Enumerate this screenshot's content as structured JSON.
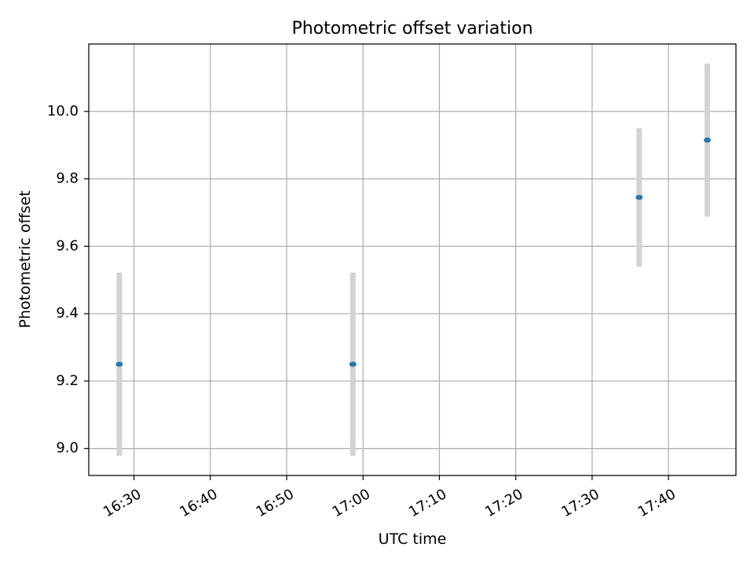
{
  "chart_data": {
    "type": "scatter",
    "title": "Photometric offset variation",
    "xlabel": "UTC time",
    "ylabel": "Photometric offset",
    "grid": true,
    "x_ticks": [
      "16:30",
      "16:40",
      "16:50",
      "17:00",
      "17:10",
      "17:20",
      "17:30",
      "17:40"
    ],
    "y_ticks": [
      "9.0",
      "9.2",
      "9.4",
      "9.6",
      "9.8",
      "10.0"
    ],
    "xlim": [
      "16:24:05",
      "17:48:50"
    ],
    "ylim": [
      8.92,
      10.2
    ],
    "series": [
      {
        "points": [
          {
            "x": "16:28:05",
            "y": 9.25,
            "y_err_low": 8.978,
            "y_err_high": 9.522
          },
          {
            "x": "16:58:40",
            "y": 9.25,
            "y_err_low": 8.978,
            "y_err_high": 9.522
          },
          {
            "x": "17:36:10",
            "y": 9.745,
            "y_err_low": 9.54,
            "y_err_high": 9.95
          },
          {
            "x": "17:45:05",
            "y": 9.915,
            "y_err_low": 9.688,
            "y_err_high": 10.142
          }
        ],
        "marker_color": "#1f77b4",
        "error_bar_color": "#d3d3d3"
      }
    ]
  }
}
